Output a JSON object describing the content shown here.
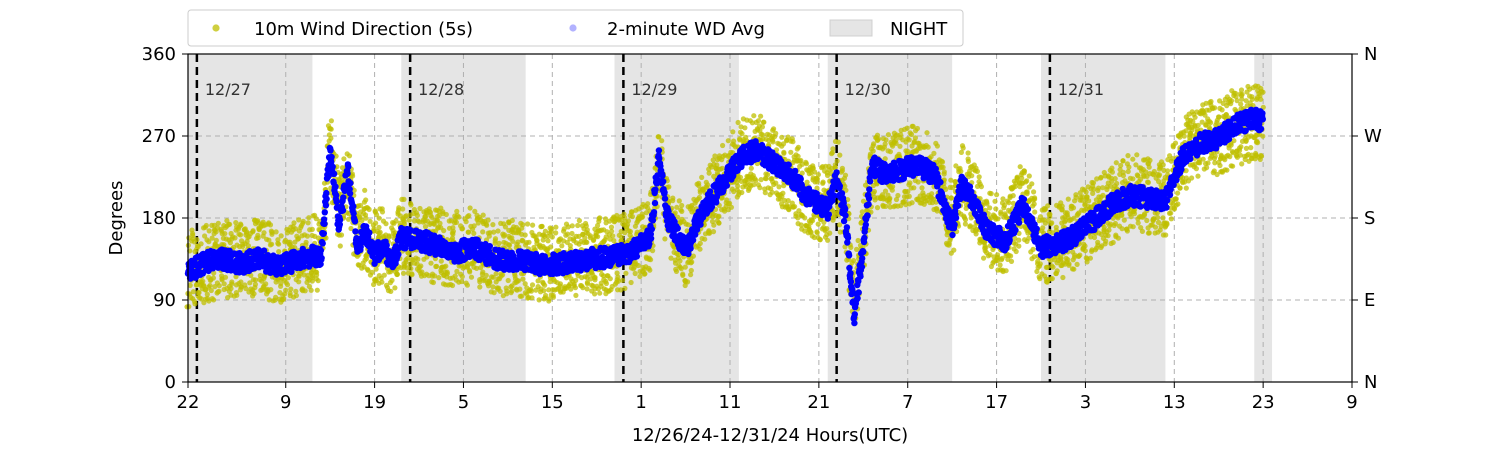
{
  "chart_data": {
    "type": "scatter",
    "xlabel": "12/26/24-12/31/24  Hours(UTC)",
    "ylabel": "Degrees",
    "ylim": [
      0,
      360
    ],
    "xlim_hours": [
      0,
      131
    ],
    "x_start_hour_utc": 22,
    "yticks": [
      0,
      90,
      180,
      270,
      360
    ],
    "right_tick_labels": [
      "N",
      "E",
      "S",
      "W",
      "N"
    ],
    "xtick_hours": [
      0,
      11,
      21,
      31,
      41,
      51,
      61,
      71,
      81,
      91,
      101,
      111,
      121,
      131
    ],
    "xtick_labels": [
      "22",
      "9",
      "19",
      "5",
      "15",
      "1",
      "11",
      "21",
      "7",
      "17",
      "3",
      "13",
      "23",
      "9"
    ],
    "grid": true,
    "legend": {
      "placement": "top",
      "entries": [
        {
          "label": "10m Wind Direction (5s)",
          "color": "#bfbf00"
        },
        {
          "label": "2-minute WD Avg",
          "color": "#0000ff"
        },
        {
          "label": "NIGHT",
          "color": "#e5e5e5"
        }
      ]
    },
    "night_periods_hours": [
      [
        0,
        14
      ],
      [
        24,
        38
      ],
      [
        48,
        62
      ],
      [
        72,
        86
      ],
      [
        96,
        110
      ],
      [
        120,
        122
      ]
    ],
    "day_markers": [
      {
        "hour": 1,
        "label": "12/27"
      },
      {
        "hour": 25,
        "label": "12/28"
      },
      {
        "hour": 49,
        "label": "12/29"
      },
      {
        "hour": 73,
        "label": "12/30"
      },
      {
        "hour": 97,
        "label": "12/31"
      }
    ],
    "series": [
      {
        "name": "10m Wind Direction (5s)",
        "color": "#bfbf00",
        "x": [
          0,
          2,
          4,
          6,
          8,
          10,
          12,
          14,
          15,
          16,
          17,
          18,
          19,
          20,
          21,
          22,
          23,
          24,
          26,
          28,
          30,
          32,
          34,
          36,
          38,
          40,
          42,
          44,
          46,
          48,
          50,
          52,
          53,
          54,
          56,
          58,
          60,
          62,
          64,
          66,
          68,
          70,
          72,
          73,
          74,
          75,
          76,
          77,
          78,
          80,
          82,
          84,
          86,
          87,
          88,
          90,
          92,
          94,
          96,
          98,
          100,
          102,
          104,
          106,
          108,
          110,
          112,
          114,
          116,
          118,
          120,
          121
        ],
        "y": [
          125,
          130,
          135,
          132,
          138,
          128,
          135,
          140,
          145,
          260,
          175,
          230,
          150,
          170,
          145,
          150,
          135,
          160,
          158,
          150,
          145,
          150,
          140,
          135,
          135,
          130,
          132,
          135,
          138,
          140,
          145,
          160,
          240,
          180,
          145,
          195,
          215,
          245,
          255,
          240,
          225,
          200,
          195,
          225,
          185,
          90,
          160,
          230,
          230,
          235,
          240,
          230,
          175,
          220,
          210,
          170,
          160,
          200,
          150,
          155,
          165,
          180,
          195,
          210,
          205,
          200,
          250,
          265,
          270,
          280,
          285,
          280
        ]
      },
      {
        "name": "2-minute WD Avg",
        "color": "#0000ff",
        "x": [
          0,
          2,
          4,
          6,
          8,
          10,
          12,
          14,
          15,
          16,
          17,
          18,
          19,
          20,
          21,
          22,
          23,
          24,
          26,
          28,
          30,
          32,
          34,
          36,
          38,
          40,
          42,
          44,
          46,
          48,
          50,
          52,
          53,
          54,
          56,
          58,
          60,
          62,
          64,
          66,
          68,
          70,
          72,
          73,
          74,
          75,
          76,
          77,
          78,
          80,
          82,
          84,
          86,
          87,
          88,
          90,
          92,
          94,
          96,
          98,
          100,
          102,
          104,
          106,
          108,
          110,
          112,
          114,
          116,
          118,
          120,
          121
        ],
        "y": [
          120,
          132,
          135,
          130,
          136,
          126,
          133,
          138,
          140,
          255,
          170,
          235,
          148,
          165,
          140,
          150,
          130,
          158,
          156,
          150,
          142,
          148,
          138,
          132,
          133,
          128,
          130,
          133,
          136,
          138,
          143,
          158,
          245,
          180,
          143,
          190,
          215,
          245,
          255,
          240,
          225,
          200,
          190,
          225,
          180,
          70,
          150,
          240,
          230,
          232,
          238,
          228,
          170,
          215,
          205,
          165,
          155,
          195,
          148,
          152,
          162,
          178,
          195,
          205,
          202,
          198,
          248,
          262,
          268,
          282,
          290,
          285
        ]
      }
    ]
  }
}
